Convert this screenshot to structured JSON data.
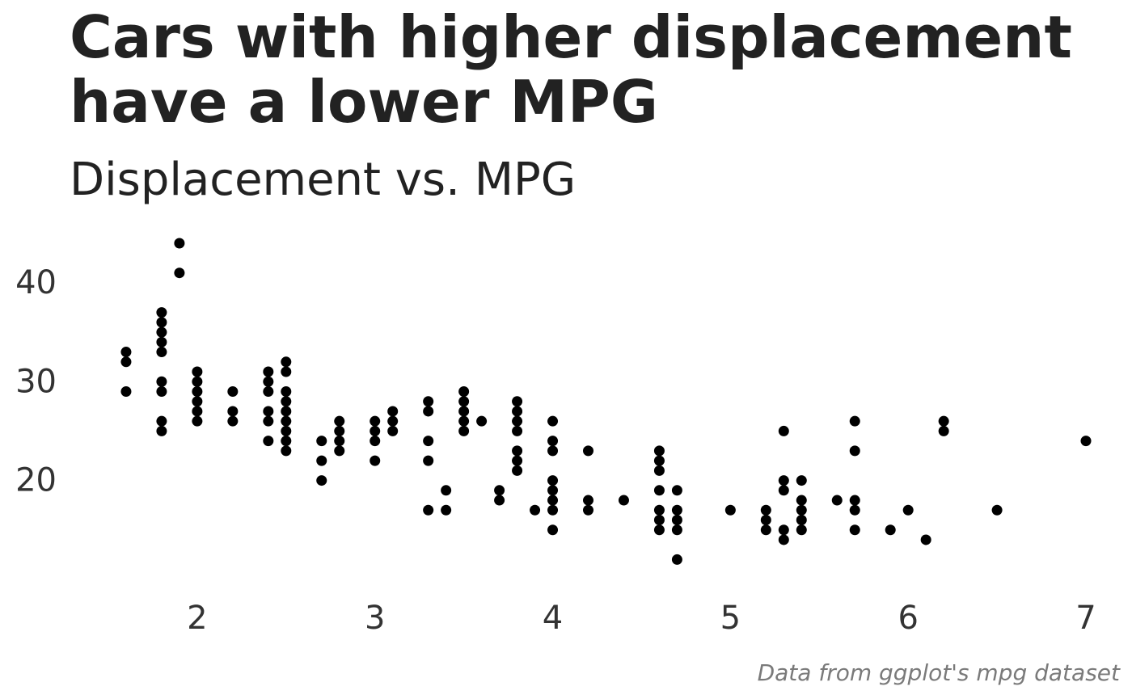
{
  "chart_data": {
    "type": "scatter",
    "title": "Cars with higher displacement have a lower MPG",
    "subtitle": "Displacement vs. MPG",
    "caption": "Data from ggplot's mpg dataset",
    "xlabel": "",
    "ylabel": "",
    "xlim": [
      1.3,
      7.1
    ],
    "ylim": [
      10.4,
      44.9
    ],
    "x_ticks": [
      2,
      3,
      4,
      5,
      6,
      7
    ],
    "y_ticks": [
      20,
      30,
      40
    ],
    "grid": false,
    "legend": "none",
    "point_color": "#000000",
    "points": [
      [
        1.6,
        33
      ],
      [
        1.6,
        32
      ],
      [
        1.6,
        29
      ],
      [
        1.8,
        37
      ],
      [
        1.8,
        36
      ],
      [
        1.8,
        35
      ],
      [
        1.8,
        34
      ],
      [
        1.8,
        33
      ],
      [
        1.8,
        30
      ],
      [
        1.8,
        29
      ],
      [
        1.8,
        26
      ],
      [
        1.8,
        25
      ],
      [
        1.9,
        44
      ],
      [
        1.9,
        41
      ],
      [
        2.0,
        31
      ],
      [
        2.0,
        30
      ],
      [
        2.0,
        29
      ],
      [
        2.0,
        28
      ],
      [
        2.0,
        27
      ],
      [
        2.0,
        26
      ],
      [
        2.2,
        29
      ],
      [
        2.2,
        27
      ],
      [
        2.2,
        26
      ],
      [
        2.4,
        31
      ],
      [
        2.4,
        30
      ],
      [
        2.4,
        29
      ],
      [
        2.4,
        27
      ],
      [
        2.4,
        26
      ],
      [
        2.4,
        24
      ],
      [
        2.5,
        32
      ],
      [
        2.5,
        31
      ],
      [
        2.5,
        29
      ],
      [
        2.5,
        28
      ],
      [
        2.5,
        27
      ],
      [
        2.5,
        26
      ],
      [
        2.5,
        25
      ],
      [
        2.5,
        24
      ],
      [
        2.5,
        23
      ],
      [
        2.7,
        24
      ],
      [
        2.7,
        22
      ],
      [
        2.7,
        20
      ],
      [
        2.8,
        26
      ],
      [
        2.8,
        25
      ],
      [
        2.8,
        24
      ],
      [
        2.8,
        23
      ],
      [
        3.0,
        26
      ],
      [
        3.0,
        25
      ],
      [
        3.0,
        24
      ],
      [
        3.0,
        22
      ],
      [
        3.1,
        27
      ],
      [
        3.1,
        26
      ],
      [
        3.1,
        25
      ],
      [
        3.3,
        28
      ],
      [
        3.3,
        27
      ],
      [
        3.3,
        24
      ],
      [
        3.3,
        22
      ],
      [
        3.3,
        17
      ],
      [
        3.4,
        19
      ],
      [
        3.4,
        17
      ],
      [
        3.5,
        29
      ],
      [
        3.5,
        28
      ],
      [
        3.5,
        27
      ],
      [
        3.5,
        26
      ],
      [
        3.5,
        25
      ],
      [
        3.6,
        26
      ],
      [
        3.7,
        19
      ],
      [
        3.7,
        18
      ],
      [
        3.8,
        28
      ],
      [
        3.8,
        27
      ],
      [
        3.8,
        26
      ],
      [
        3.8,
        25
      ],
      [
        3.8,
        23
      ],
      [
        3.8,
        22
      ],
      [
        3.8,
        21
      ],
      [
        3.9,
        17
      ],
      [
        4.0,
        26
      ],
      [
        4.0,
        24
      ],
      [
        4.0,
        23
      ],
      [
        4.0,
        20
      ],
      [
        4.0,
        19
      ],
      [
        4.0,
        18
      ],
      [
        4.0,
        17
      ],
      [
        4.0,
        15
      ],
      [
        4.2,
        23
      ],
      [
        4.2,
        18
      ],
      [
        4.2,
        17
      ],
      [
        4.4,
        18
      ],
      [
        4.6,
        23
      ],
      [
        4.6,
        22
      ],
      [
        4.6,
        21
      ],
      [
        4.6,
        19
      ],
      [
        4.6,
        17
      ],
      [
        4.6,
        16
      ],
      [
        4.6,
        15
      ],
      [
        4.7,
        19
      ],
      [
        4.7,
        17
      ],
      [
        4.7,
        16
      ],
      [
        4.7,
        15
      ],
      [
        4.7,
        12
      ],
      [
        5.0,
        17
      ],
      [
        5.2,
        17
      ],
      [
        5.2,
        16
      ],
      [
        5.2,
        15
      ],
      [
        5.3,
        25
      ],
      [
        5.3,
        20
      ],
      [
        5.3,
        19
      ],
      [
        5.3,
        15
      ],
      [
        5.3,
        14
      ],
      [
        5.4,
        20
      ],
      [
        5.4,
        18
      ],
      [
        5.4,
        17
      ],
      [
        5.4,
        16
      ],
      [
        5.4,
        15
      ],
      [
        5.6,
        18
      ],
      [
        5.7,
        26
      ],
      [
        5.7,
        23
      ],
      [
        5.7,
        18
      ],
      [
        5.7,
        17
      ],
      [
        5.7,
        15
      ],
      [
        5.9,
        15
      ],
      [
        6.0,
        17
      ],
      [
        6.1,
        14
      ],
      [
        6.2,
        26
      ],
      [
        6.2,
        25
      ],
      [
        6.5,
        17
      ],
      [
        7.0,
        24
      ]
    ]
  }
}
